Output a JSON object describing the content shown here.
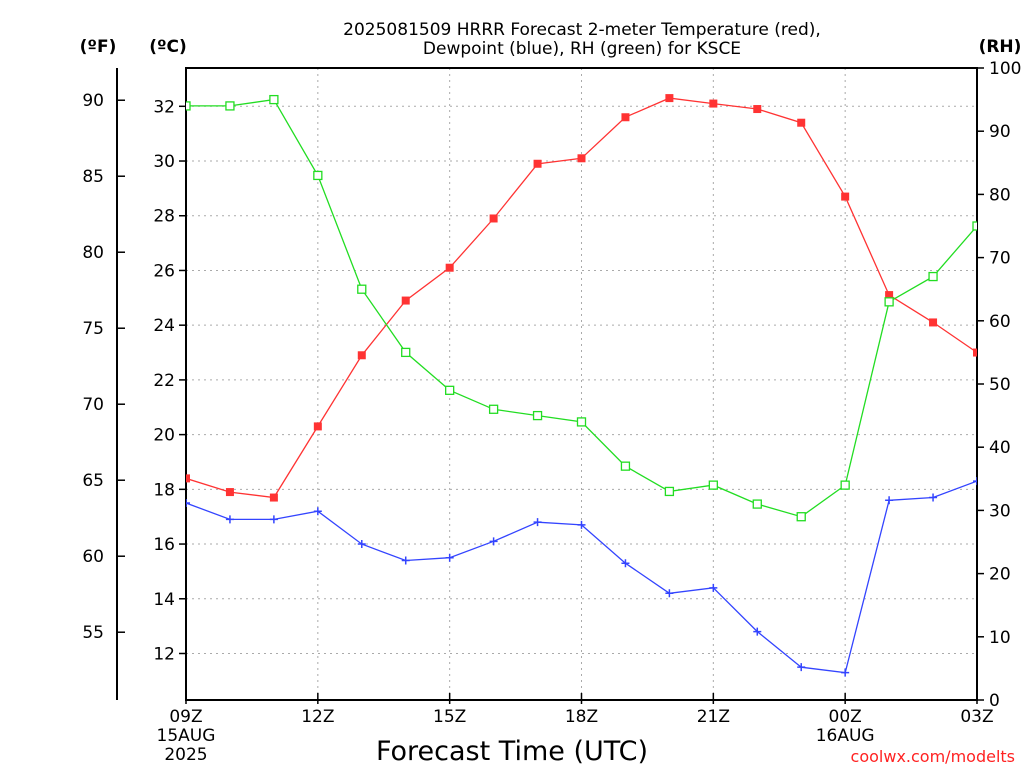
{
  "chart_data": {
    "type": "line",
    "title_line1": "2025081509 HRRR Forecast 2-meter Temperature (red),",
    "title_line2": "Dewpoint (blue), RH (green) for KSCE",
    "xlabel": "Forecast Time (UTC)",
    "credit": "coolwx.com/modelts",
    "axis_units": {
      "fahrenheit": "(ºF)",
      "celsius": "(ºC)",
      "rh": "(RH)"
    },
    "x_hours": [
      0,
      1,
      2,
      3,
      4,
      5,
      6,
      7,
      8,
      9,
      10,
      11,
      12,
      13,
      14,
      15,
      16,
      17,
      18
    ],
    "x_ticks": [
      {
        "hour": 0,
        "label": "09Z",
        "sub1": "15AUG",
        "sub2": "2025"
      },
      {
        "hour": 3,
        "label": "12Z"
      },
      {
        "hour": 6,
        "label": "15Z"
      },
      {
        "hour": 9,
        "label": "18Z"
      },
      {
        "hour": 12,
        "label": "21Z"
      },
      {
        "hour": 15,
        "label": "00Z",
        "sub1": "16AUG"
      },
      {
        "hour": 18,
        "label": "03Z"
      }
    ],
    "ylim_celsius": [
      10.3,
      33.4
    ],
    "ylim_rh": [
      0,
      100
    ],
    "celsius_ticks": [
      "12",
      "14",
      "16",
      "18",
      "20",
      "22",
      "24",
      "26",
      "28",
      "30",
      "32"
    ],
    "fahrenheit_ticks": [
      "55",
      "60",
      "65",
      "70",
      "75",
      "80",
      "85",
      "90"
    ],
    "rh_ticks": [
      "0",
      "10",
      "20",
      "30",
      "40",
      "50",
      "60",
      "70",
      "80",
      "90",
      "100"
    ],
    "grid": true,
    "series": [
      {
        "name": "Temperature",
        "axis": "celsius",
        "color": "#ff3333",
        "marker": "filled-square",
        "values": [
          18.4,
          17.9,
          17.7,
          20.3,
          22.9,
          24.9,
          26.1,
          27.9,
          29.9,
          30.1,
          31.6,
          32.3,
          32.1,
          31.9,
          31.4,
          28.7,
          25.1,
          24.1,
          23.0
        ]
      },
      {
        "name": "Dewpoint",
        "axis": "celsius",
        "color": "#3344ff",
        "marker": "plus",
        "values": [
          17.5,
          16.9,
          16.9,
          17.2,
          16.0,
          15.4,
          15.5,
          16.1,
          16.8,
          16.7,
          15.3,
          14.2,
          14.4,
          12.8,
          11.5,
          11.3,
          17.6,
          17.7,
          18.3
        ]
      },
      {
        "name": "RH",
        "axis": "rh",
        "color": "#22dd22",
        "marker": "open-square",
        "values": [
          94,
          94,
          95,
          83,
          65,
          55,
          49,
          46,
          45,
          44,
          37,
          33,
          34,
          31,
          29,
          34,
          63,
          67,
          75
        ]
      }
    ]
  },
  "colors": {
    "accent": "#ff2222"
  }
}
